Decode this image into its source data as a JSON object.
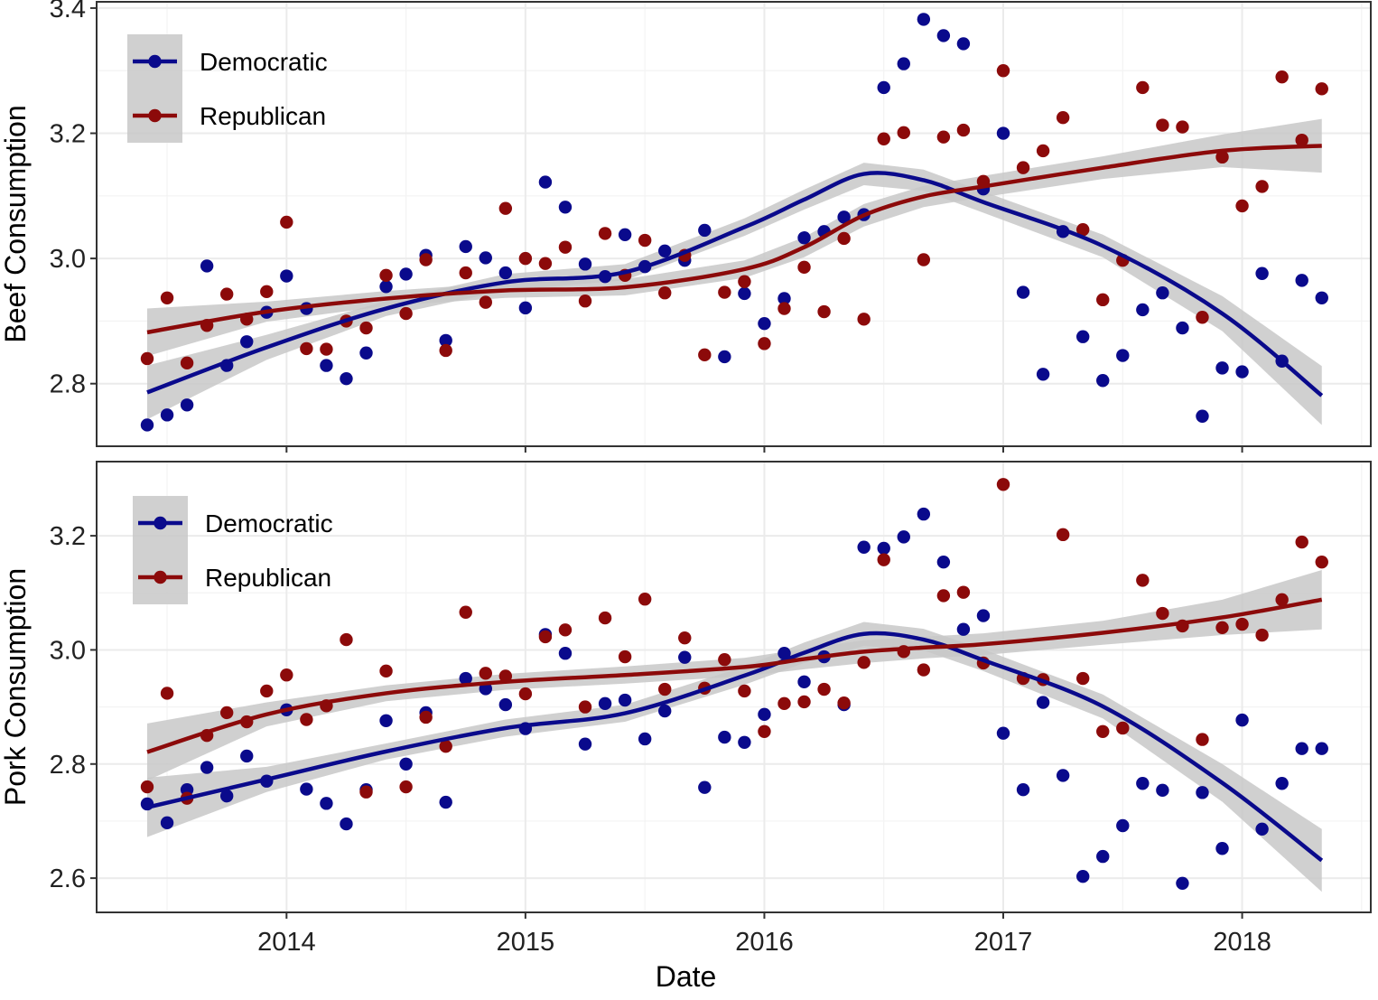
{
  "colors": {
    "democratic": "#0a0a8c",
    "republican": "#8c0a0a",
    "ribbon": "#c8c8c8"
  },
  "chart_data": [
    {
      "type": "scatter",
      "panel": "top",
      "xlabel": "Date",
      "ylabel": "Beef Consumption",
      "xlim": [
        "2013-03-15",
        "2018-07-15"
      ],
      "ylim": [
        2.7,
        3.41
      ],
      "y_ticks": [
        2.8,
        3.0,
        3.2,
        3.4
      ],
      "y_tick_labels": [
        "2.8",
        "3.0",
        "3.2",
        "3.4"
      ],
      "x_ticks": [
        "2014-01-01",
        "2015-01-01",
        "2016-01-01",
        "2017-01-01",
        "2018-01-01"
      ],
      "x_tick_labels": [
        "2014",
        "2015",
        "2016",
        "2017",
        "2018"
      ],
      "grid": true,
      "legend_position": "top-left",
      "smoother": "loess with confidence band",
      "series": [
        {
          "name": "Democratic",
          "x": [
            "2013-06",
            "2013-07",
            "2013-08",
            "2013-09",
            "2013-10",
            "2013-11",
            "2013-12",
            "2014-01",
            "2014-02",
            "2014-03",
            "2014-04",
            "2014-05",
            "2014-06",
            "2014-07",
            "2014-08",
            "2014-09",
            "2014-10",
            "2014-11",
            "2014-12",
            "2015-01",
            "2015-02",
            "2015-03",
            "2015-04",
            "2015-05",
            "2015-06",
            "2015-07",
            "2015-08",
            "2015-09",
            "2015-10",
            "2015-11",
            "2015-12",
            "2016-01",
            "2016-02",
            "2016-03",
            "2016-04",
            "2016-05",
            "2016-06",
            "2016-07",
            "2016-08",
            "2016-09",
            "2016-10",
            "2016-11",
            "2016-12",
            "2017-01",
            "2017-02",
            "2017-03",
            "2017-04",
            "2017-05",
            "2017-06",
            "2017-07",
            "2017-08",
            "2017-09",
            "2017-10",
            "2017-11",
            "2017-12",
            "2018-01",
            "2018-02",
            "2018-03",
            "2018-04",
            "2018-05"
          ],
          "y": [
            2.734,
            2.75,
            2.766,
            2.988,
            2.829,
            2.867,
            2.914,
            2.972,
            2.92,
            2.829,
            2.808,
            2.849,
            2.955,
            2.975,
            3.005,
            2.869,
            3.019,
            3.001,
            2.977,
            2.921,
            3.122,
            3.082,
            2.991,
            2.971,
            3.038,
            2.987,
            3.012,
            2.997,
            3.045,
            2.843,
            2.944,
            2.896,
            2.936,
            3.033,
            3.043,
            3.066,
            3.07,
            3.273,
            3.311,
            3.382,
            3.356,
            3.343,
            3.111,
            3.2,
            2.946,
            2.815,
            3.043,
            2.875,
            2.805,
            2.845,
            2.918,
            2.945,
            2.889,
            2.748,
            2.825,
            2.819,
            2.976,
            2.836,
            2.965,
            2.937
          ]
        },
        {
          "name": "Republican",
          "x": [
            "2013-06",
            "2013-07",
            "2013-08",
            "2013-09",
            "2013-10",
            "2013-11",
            "2013-12",
            "2014-01",
            "2014-02",
            "2014-03",
            "2014-04",
            "2014-05",
            "2014-06",
            "2014-07",
            "2014-08",
            "2014-09",
            "2014-10",
            "2014-11",
            "2014-12",
            "2015-01",
            "2015-02",
            "2015-03",
            "2015-04",
            "2015-05",
            "2015-06",
            "2015-07",
            "2015-08",
            "2015-09",
            "2015-10",
            "2015-11",
            "2015-12",
            "2016-01",
            "2016-02",
            "2016-03",
            "2016-04",
            "2016-05",
            "2016-06",
            "2016-07",
            "2016-08",
            "2016-09",
            "2016-10",
            "2016-11",
            "2016-12",
            "2017-01",
            "2017-02",
            "2017-03",
            "2017-04",
            "2017-05",
            "2017-06",
            "2017-07",
            "2017-08",
            "2017-09",
            "2017-10",
            "2017-11",
            "2017-12",
            "2018-01",
            "2018-02",
            "2018-03",
            "2018-04",
            "2018-05"
          ],
          "y": [
            2.84,
            2.937,
            2.833,
            2.893,
            2.943,
            2.903,
            2.947,
            3.058,
            2.856,
            2.855,
            2.9,
            2.889,
            2.973,
            2.912,
            2.998,
            2.853,
            2.977,
            2.93,
            3.08,
            3.0,
            2.992,
            3.018,
            2.932,
            3.04,
            2.973,
            3.029,
            2.945,
            3.005,
            2.846,
            2.946,
            2.963,
            2.864,
            2.92,
            2.986,
            2.915,
            3.032,
            2.903,
            3.191,
            3.201,
            2.998,
            3.194,
            3.205,
            3.123,
            3.3,
            3.145,
            3.172,
            3.225,
            3.046,
            2.934,
            2.997,
            3.273,
            3.213,
            3.21,
            2.906,
            3.162,
            3.084,
            3.115,
            3.29,
            3.189,
            3.271
          ]
        }
      ],
      "trend": {
        "Democratic": {
          "x": [
            "2013-06",
            "2013-12",
            "2014-06",
            "2014-12",
            "2015-06",
            "2015-12",
            "2016-03",
            "2016-06",
            "2016-09",
            "2016-12",
            "2017-06",
            "2017-12",
            "2018-05"
          ],
          "y": [
            2.786,
            2.858,
            2.92,
            2.962,
            2.978,
            3.05,
            3.094,
            3.135,
            3.125,
            3.09,
            3.02,
            2.912,
            2.781
          ],
          "ci": [
            0.043,
            0.02,
            0.012,
            0.013,
            0.013,
            0.014,
            0.016,
            0.018,
            0.017,
            0.017,
            0.018,
            0.028,
            0.047
          ]
        },
        "Republican": {
          "x": [
            "2013-06",
            "2013-12",
            "2014-06",
            "2014-12",
            "2015-06",
            "2015-12",
            "2016-03",
            "2016-06",
            "2016-09",
            "2016-12",
            "2017-06",
            "2017-12",
            "2018-05"
          ],
          "y": [
            2.882,
            2.915,
            2.936,
            2.949,
            2.954,
            2.983,
            3.018,
            3.069,
            3.099,
            3.115,
            3.145,
            3.172,
            3.18
          ],
          "ci": [
            0.038,
            0.016,
            0.012,
            0.012,
            0.013,
            0.014,
            0.016,
            0.018,
            0.017,
            0.017,
            0.018,
            0.026,
            0.043
          ]
        }
      }
    },
    {
      "type": "scatter",
      "panel": "bottom",
      "xlabel": "Date",
      "ylabel": "Pork Consumption",
      "xlim": [
        "2013-03-15",
        "2018-07-15"
      ],
      "ylim": [
        2.54,
        3.33
      ],
      "y_ticks": [
        2.6,
        2.8,
        3.0,
        3.2
      ],
      "y_tick_labels": [
        "2.6",
        "2.8",
        "3.0",
        "3.2"
      ],
      "x_ticks": [
        "2014-01-01",
        "2015-01-01",
        "2016-01-01",
        "2017-01-01",
        "2018-01-01"
      ],
      "x_tick_labels": [
        "2014",
        "2015",
        "2016",
        "2017",
        "2018"
      ],
      "grid": true,
      "legend_position": "top-left",
      "smoother": "loess with confidence band",
      "series": [
        {
          "name": "Democratic",
          "x": [
            "2013-06",
            "2013-07",
            "2013-08",
            "2013-09",
            "2013-10",
            "2013-11",
            "2013-12",
            "2014-01",
            "2014-02",
            "2014-03",
            "2014-04",
            "2014-05",
            "2014-06",
            "2014-07",
            "2014-08",
            "2014-09",
            "2014-10",
            "2014-11",
            "2014-12",
            "2015-01",
            "2015-02",
            "2015-03",
            "2015-04",
            "2015-05",
            "2015-06",
            "2015-07",
            "2015-08",
            "2015-09",
            "2015-10",
            "2015-11",
            "2015-12",
            "2016-01",
            "2016-02",
            "2016-03",
            "2016-04",
            "2016-05",
            "2016-06",
            "2016-07",
            "2016-08",
            "2016-09",
            "2016-10",
            "2016-11",
            "2016-12",
            "2017-01",
            "2017-02",
            "2017-03",
            "2017-04",
            "2017-05",
            "2017-06",
            "2017-07",
            "2017-08",
            "2017-09",
            "2017-10",
            "2017-11",
            "2017-12",
            "2018-01",
            "2018-02",
            "2018-03",
            "2018-04",
            "2018-05"
          ],
          "y": [
            2.73,
            2.697,
            2.755,
            2.794,
            2.744,
            2.814,
            2.77,
            2.895,
            2.756,
            2.731,
            2.695,
            2.755,
            2.876,
            2.8,
            2.89,
            2.733,
            2.95,
            2.932,
            2.904,
            2.862,
            3.027,
            2.994,
            2.835,
            2.906,
            2.912,
            2.844,
            2.893,
            2.987,
            2.759,
            2.847,
            2.838,
            2.887,
            2.994,
            2.944,
            2.988,
            2.904,
            3.18,
            3.178,
            3.198,
            3.238,
            3.154,
            3.036,
            3.06,
            2.854,
            2.755,
            2.908,
            2.78,
            2.603,
            2.638,
            2.692,
            2.766,
            2.754,
            2.591,
            2.75,
            2.652,
            2.877,
            2.686,
            2.766,
            2.827,
            2.827
          ]
        },
        {
          "name": "Republican",
          "x": [
            "2013-06",
            "2013-07",
            "2013-08",
            "2013-09",
            "2013-10",
            "2013-11",
            "2013-12",
            "2014-01",
            "2014-02",
            "2014-03",
            "2014-04",
            "2014-05",
            "2014-06",
            "2014-07",
            "2014-08",
            "2014-09",
            "2014-10",
            "2014-11",
            "2014-12",
            "2015-01",
            "2015-02",
            "2015-03",
            "2015-04",
            "2015-05",
            "2015-06",
            "2015-07",
            "2015-08",
            "2015-09",
            "2015-10",
            "2015-11",
            "2015-12",
            "2016-01",
            "2016-02",
            "2016-03",
            "2016-04",
            "2016-05",
            "2016-06",
            "2016-07",
            "2016-08",
            "2016-09",
            "2016-10",
            "2016-11",
            "2016-12",
            "2017-01",
            "2017-02",
            "2017-03",
            "2017-04",
            "2017-05",
            "2017-06",
            "2017-07",
            "2017-08",
            "2017-09",
            "2017-10",
            "2017-11",
            "2017-12",
            "2018-01",
            "2018-02",
            "2018-03",
            "2018-04",
            "2018-05"
          ],
          "y": [
            2.76,
            2.924,
            2.74,
            2.85,
            2.89,
            2.874,
            2.928,
            2.956,
            2.878,
            2.902,
            3.018,
            2.751,
            2.963,
            2.76,
            2.882,
            2.831,
            3.066,
            2.959,
            2.954,
            2.923,
            3.023,
            3.035,
            2.9,
            3.056,
            2.988,
            3.089,
            2.931,
            3.021,
            2.933,
            2.983,
            2.928,
            2.857,
            2.906,
            2.909,
            2.931,
            2.907,
            2.978,
            3.158,
            2.997,
            2.965,
            3.095,
            3.101,
            2.977,
            3.29,
            2.95,
            2.948,
            3.202,
            2.95,
            2.857,
            2.863,
            3.122,
            3.064,
            3.042,
            2.843,
            3.039,
            3.045,
            3.026,
            3.088,
            3.189,
            3.154
          ]
        }
      ],
      "trend": {
        "Democratic": {
          "x": [
            "2013-06",
            "2013-12",
            "2014-06",
            "2014-12",
            "2015-06",
            "2015-12",
            "2016-03",
            "2016-06",
            "2016-09",
            "2016-12",
            "2017-06",
            "2017-12",
            "2018-05"
          ],
          "y": [
            2.724,
            2.773,
            2.822,
            2.863,
            2.889,
            2.955,
            2.995,
            3.028,
            3.018,
            2.982,
            2.901,
            2.767,
            2.631
          ],
          "ci": [
            0.052,
            0.022,
            0.014,
            0.015,
            0.015,
            0.016,
            0.018,
            0.021,
            0.019,
            0.019,
            0.021,
            0.033,
            0.055
          ]
        },
        "Republican": {
          "x": [
            "2013-06",
            "2013-12",
            "2014-06",
            "2014-12",
            "2015-06",
            "2015-12",
            "2016-03",
            "2016-06",
            "2016-09",
            "2016-12",
            "2017-06",
            "2017-12",
            "2018-05"
          ],
          "y": [
            2.821,
            2.887,
            2.924,
            2.944,
            2.956,
            2.97,
            2.984,
            2.997,
            3.004,
            3.01,
            3.03,
            3.057,
            3.088
          ],
          "ci": [
            0.05,
            0.021,
            0.014,
            0.014,
            0.015,
            0.016,
            0.018,
            0.02,
            0.019,
            0.019,
            0.021,
            0.031,
            0.052
          ]
        }
      }
    }
  ]
}
